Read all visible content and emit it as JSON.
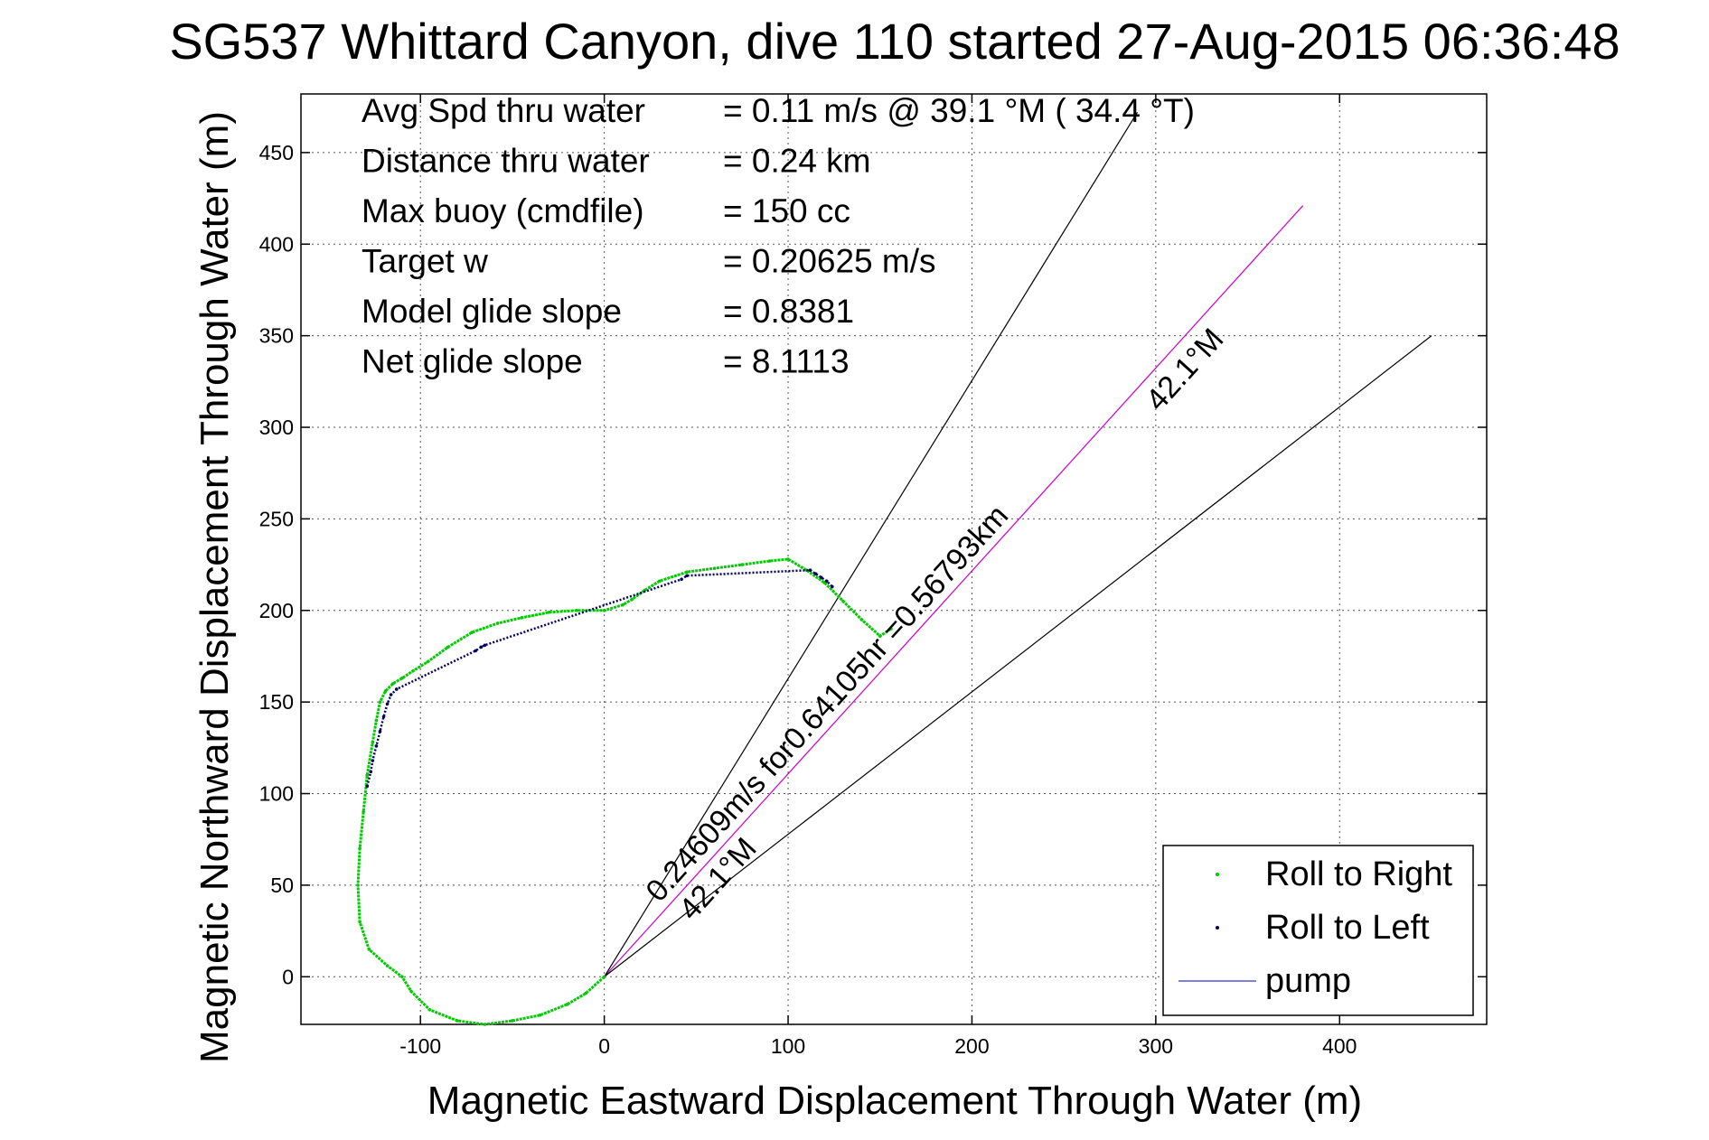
{
  "chart_data": {
    "type": "scatter",
    "title": "SG537 Whittard Canyon, dive 110 started 27-Aug-2015 06:36:48",
    "xlabel": "Magnetic Eastward Displacement Through Water (m)",
    "ylabel": "Magnetic Northward Displacement Through Water (m)",
    "xlim": [
      -165,
      480
    ],
    "ylim": [
      -26,
      482
    ],
    "xticks": [
      -100,
      0,
      100,
      200,
      300,
      400
    ],
    "yticks": [
      0,
      50,
      100,
      150,
      200,
      250,
      300,
      350,
      400,
      450
    ],
    "grid": true,
    "legend_position": "bottom-right",
    "legend": [
      {
        "label": "Roll to Right",
        "marker": "dot",
        "color": "#00cc00"
      },
      {
        "label": "Roll to Left",
        "marker": "dot",
        "color": "#000066"
      },
      {
        "label": "pump",
        "marker": "line",
        "color": "#3333cc"
      }
    ],
    "stats": [
      {
        "label": "Avg Spd thru water",
        "value": "=  0.11 m/s @  39.1 °M ( 34.4 °T)"
      },
      {
        "label": "Distance thru water",
        "value": "=  0.24 km"
      },
      {
        "label": "Max buoy (cmdfile)",
        "value": "= 150 cc"
      },
      {
        "label": "Target w",
        "value": "= 0.20625 m/s"
      },
      {
        "label": "Model glide slope",
        "value": "= 0.8381"
      },
      {
        "label": "Net glide slope",
        "value": "= 8.1113"
      }
    ],
    "annotations": [
      {
        "text": "0.24609m/s for0.64105hr =0.56793km",
        "x": 30,
        "y": 40
      },
      {
        "text": "42.1°M",
        "x": 48,
        "y": 30
      },
      {
        "text": "42.1°M",
        "x": 302,
        "y": 308
      }
    ],
    "lines": [
      {
        "name": "heading-line",
        "color": "#cc00cc",
        "x": [
          0,
          380
        ],
        "y": [
          0,
          421
        ]
      },
      {
        "name": "bound-left",
        "color": "#000000",
        "x": [
          0,
          290
        ],
        "y": [
          0,
          472
        ]
      },
      {
        "name": "bound-right",
        "color": "#000000",
        "x": [
          0,
          450
        ],
        "y": [
          0,
          350
        ]
      }
    ],
    "series": [
      {
        "name": "Roll to Right",
        "color": "#00cc00",
        "x": [
          0,
          -10,
          -20,
          -35,
          -50,
          -65,
          -80,
          -95,
          -105,
          -110,
          -118,
          -128,
          -133,
          -134,
          -133,
          -131,
          -129,
          -126,
          -124,
          -122,
          -119,
          -115,
          -110,
          -104,
          -96,
          -85,
          -72,
          -58,
          -45,
          -30,
          -15,
          0,
          10,
          15,
          22,
          30,
          45,
          60,
          75,
          90,
          100,
          110,
          120,
          130,
          140,
          150,
          156
        ],
        "y": [
          0,
          -9,
          -15,
          -21,
          -24,
          -26,
          -24,
          -18,
          -8,
          0,
          6,
          15,
          30,
          50,
          70,
          90,
          110,
          128,
          140,
          150,
          156,
          160,
          163,
          167,
          172,
          180,
          188,
          193,
          196,
          199,
          200,
          200,
          203,
          206,
          211,
          216,
          221,
          223,
          225,
          227,
          228,
          222,
          215,
          205,
          195,
          186,
          190
        ]
      },
      {
        "name": "Roll to Left",
        "color": "#000066",
        "x": [
          -129,
          -127,
          -126,
          -124,
          -122,
          -120,
          -118,
          -116,
          -113,
          -70,
          -67,
          -65,
          42,
          45,
          112,
          115,
          118,
          121,
          124
        ],
        "y": [
          104,
          112,
          118,
          126,
          134,
          142,
          149,
          154,
          157,
          178,
          180,
          181,
          217,
          219,
          222,
          220,
          218,
          216,
          213
        ]
      }
    ]
  }
}
